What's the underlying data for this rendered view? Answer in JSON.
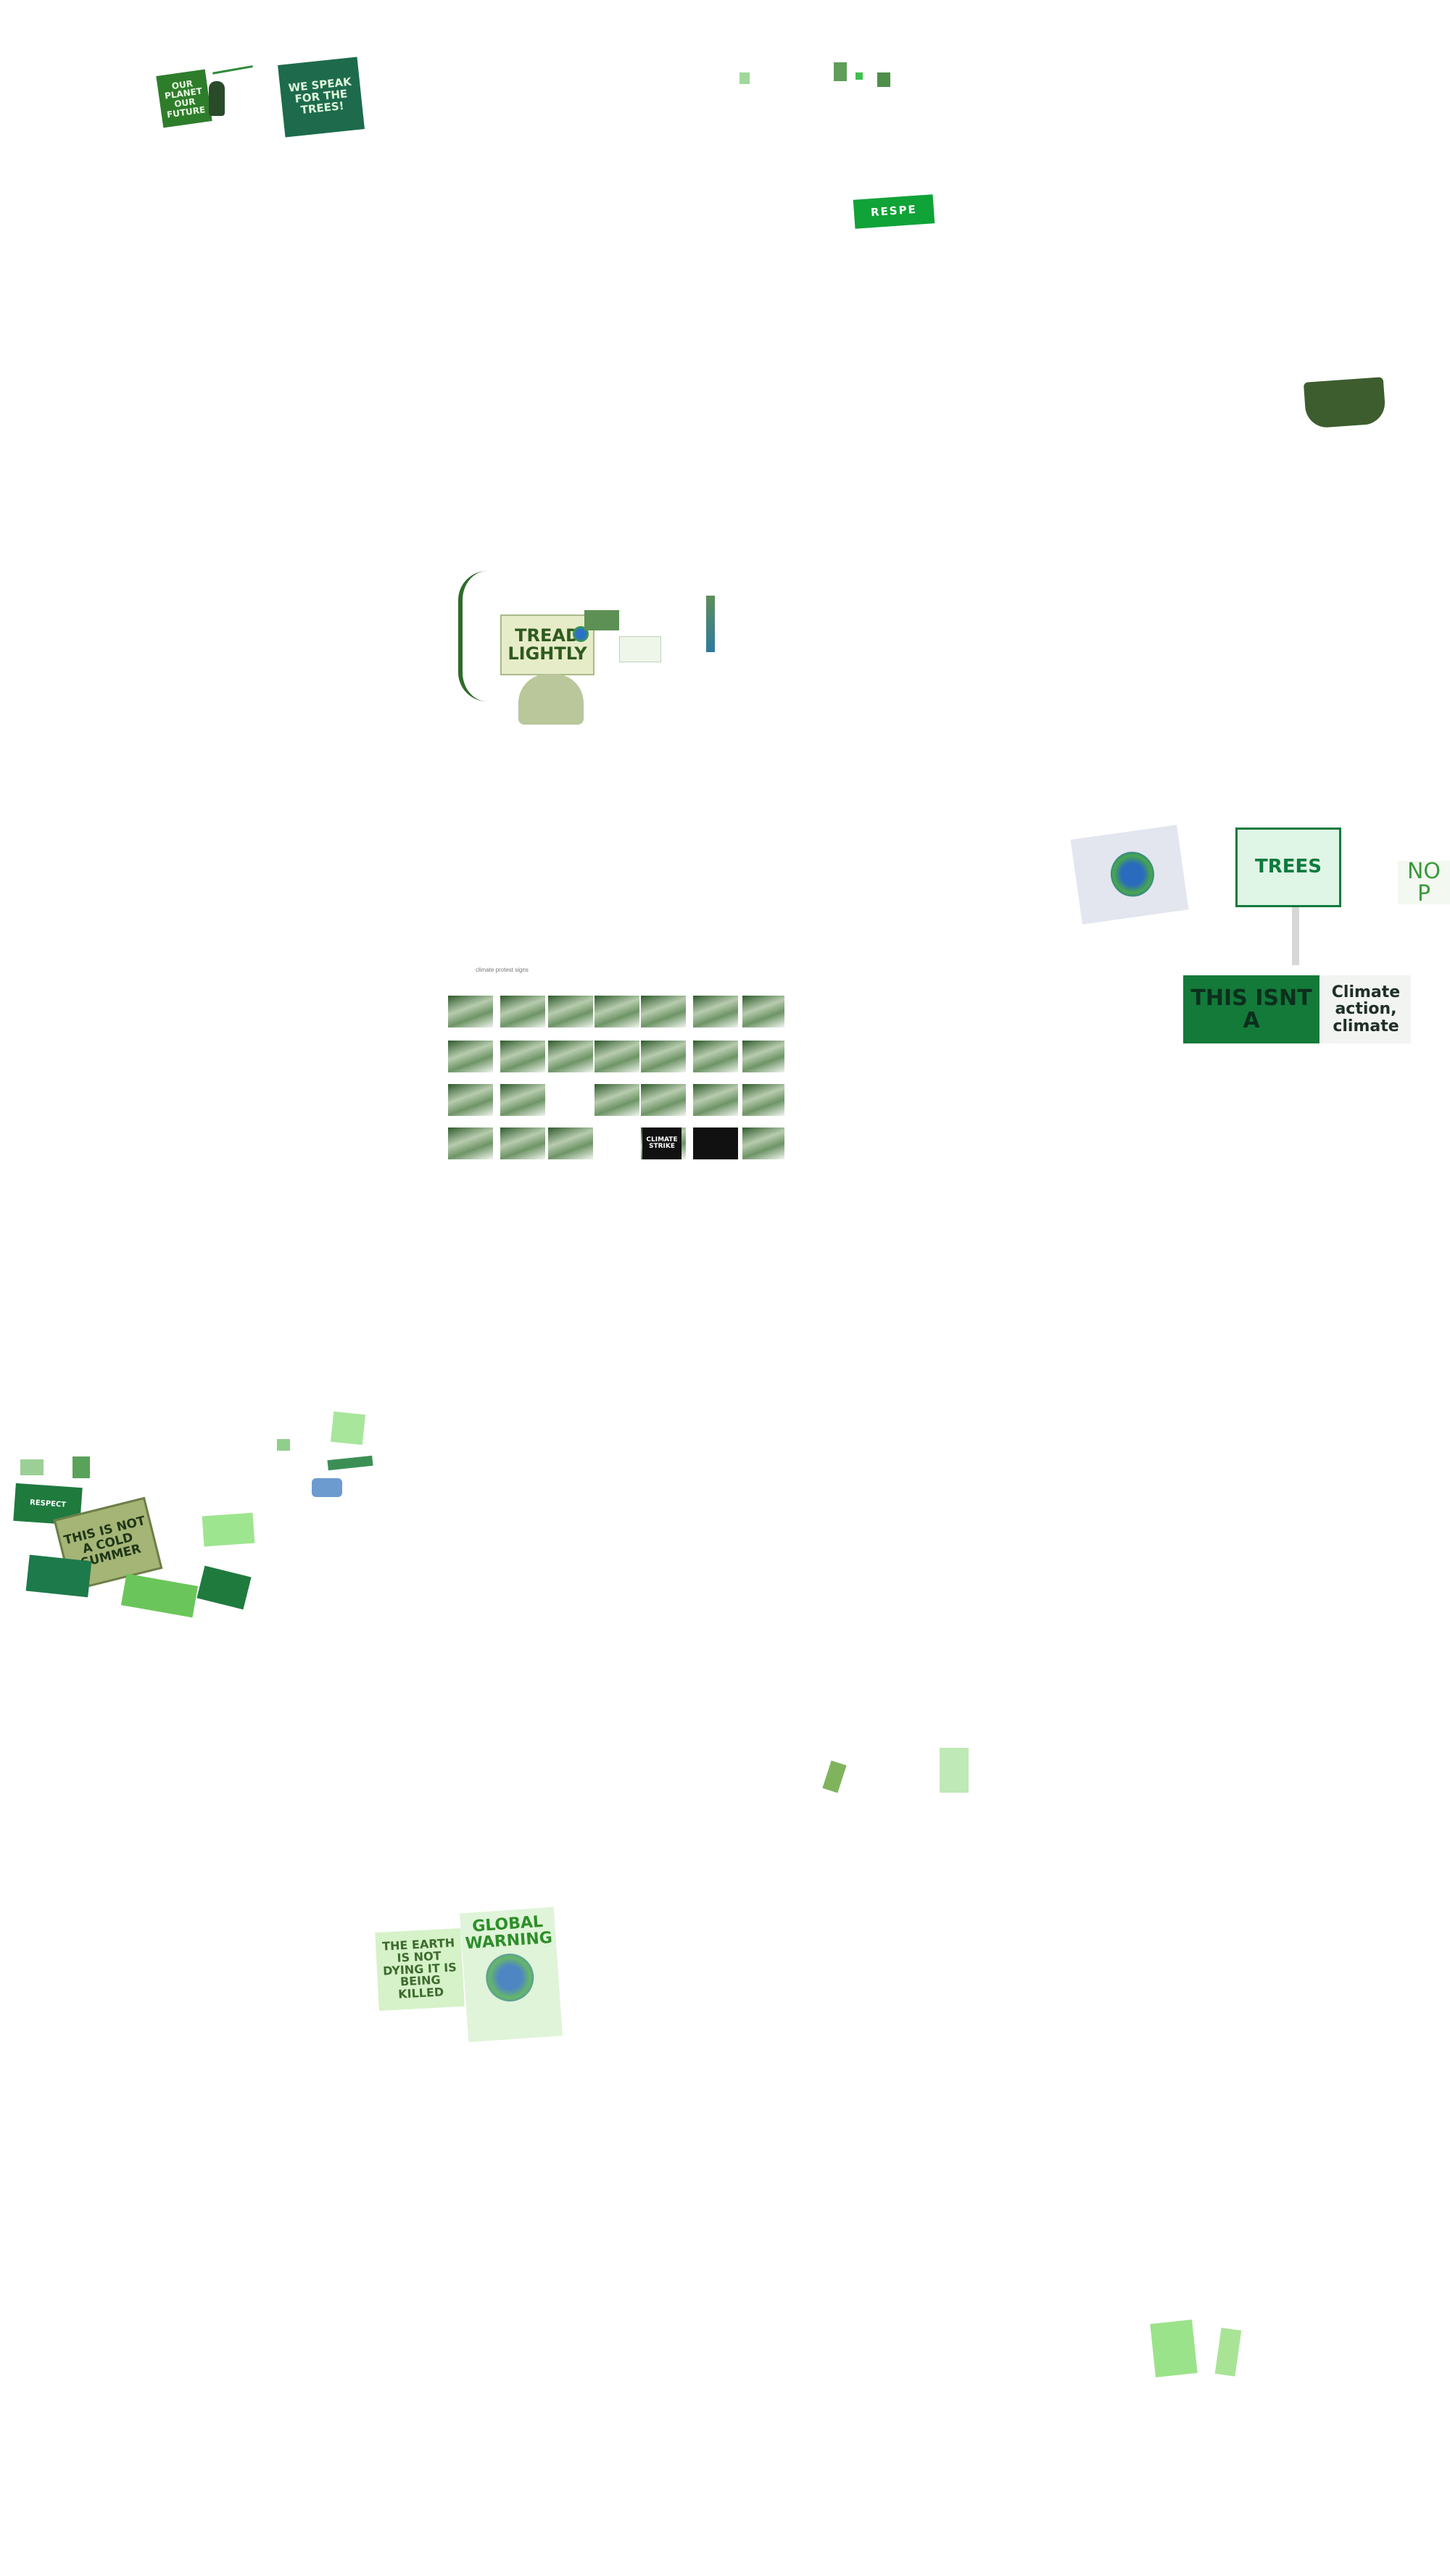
{
  "page": {
    "background": "#ffffff"
  },
  "colors": {
    "sign_green": "#1f7a3e",
    "dark_green": "#13593a",
    "bright_green": "#10a337",
    "light_green": "#a8e69b",
    "pale_green": "#e9f7e4"
  },
  "signs": {
    "our_planet": "OUR PLANET OUR FUTURE",
    "we_speak": "WE SPEAK FOR THE TREES!",
    "respect": "RESPE",
    "tread_lightly": "TREAD LIGHTLY",
    "trees": "TREES",
    "no": "NO P",
    "this_isnt": "THIS ISNT A",
    "climate_action": "Climate action, climate",
    "respect_small": "RESPECT",
    "not_cold": "THIS IS NOT A COLD SUMMER",
    "earth_not_dying": "THE EARTH IS NOT DYING IT IS BEING KILLED",
    "global_warning": "GLOBAL WARNING",
    "climate_strike": "CLIMATE STRIKE"
  },
  "grid": {
    "caption": "climate protest signs"
  },
  "icons": {
    "earth": "earth-icon",
    "vine": "vine-icon"
  }
}
